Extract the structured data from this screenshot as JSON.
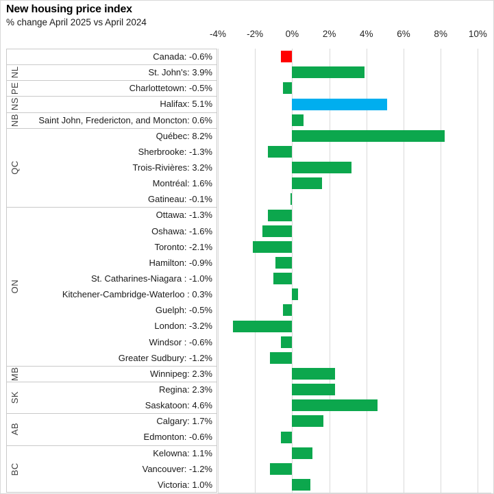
{
  "header": {
    "title": "New housing price index",
    "subtitle": "% change April 2025 vs April 2024"
  },
  "chart_data": {
    "type": "bar",
    "orientation": "horizontal",
    "title": "New housing price index",
    "subtitle": "% change April 2025 vs April 2024",
    "xlabel": "% change",
    "ylabel": "",
    "grid": "vertical",
    "legend": "none",
    "axis": {
      "min": -4,
      "max": 10.8,
      "ticks": [
        {
          "label": "-4%",
          "value": -4
        },
        {
          "label": "-2%",
          "value": -2
        },
        {
          "label": "0%",
          "value": 0
        },
        {
          "label": "2%",
          "value": 2
        },
        {
          "label": "4%",
          "value": 4
        },
        {
          "label": "6%",
          "value": 6
        },
        {
          "label": "8%",
          "value": 8
        },
        {
          "label": "10%",
          "value": 10
        }
      ]
    },
    "colors": {
      "bar_default": "#0CA74D",
      "bar_canada": "#FF0000",
      "bar_halifax": "#00AEEF",
      "gridline": "#d9d9d9",
      "box_border": "#c9c9c9"
    },
    "groups": [
      {
        "label": "",
        "rows": [
          {
            "name": "Canada",
            "text": "Canada: -0.6%",
            "value": -0.6,
            "color": "#FF0000"
          }
        ]
      },
      {
        "label": "NL",
        "rows": [
          {
            "name": "St. John's",
            "text": "St. John's: 3.9%",
            "value": 3.9
          }
        ]
      },
      {
        "label": "PE",
        "rows": [
          {
            "name": "Charlottetown",
            "text": "Charlottetown: -0.5%",
            "value": -0.5
          }
        ]
      },
      {
        "label": "NS",
        "rows": [
          {
            "name": "Halifax",
            "text": "Halifax: 5.1%",
            "value": 5.1,
            "color": "#00AEEF"
          }
        ]
      },
      {
        "label": "NB",
        "rows": [
          {
            "name": "Saint John, Fredericton, and Moncton",
            "text": "Saint John, Fredericton, and Moncton: 0.6%",
            "value": 0.6
          }
        ]
      },
      {
        "label": "QC",
        "rows": [
          {
            "name": "Québec",
            "text": "Québec: 8.2%",
            "value": 8.2
          },
          {
            "name": "Sherbrooke",
            "text": "Sherbrooke: -1.3%",
            "value": -1.3
          },
          {
            "name": "Trois-Rivières",
            "text": "Trois-Rivières: 3.2%",
            "value": 3.2
          },
          {
            "name": "Montréal",
            "text": "Montréal: 1.6%",
            "value": 1.6
          },
          {
            "name": "Gatineau",
            "text": "Gatineau: -0.1%",
            "value": -0.1
          }
        ]
      },
      {
        "label": "ON",
        "rows": [
          {
            "name": "Ottawa",
            "text": "Ottawa: -1.3%",
            "value": -1.3
          },
          {
            "name": "Oshawa",
            "text": "Oshawa: -1.6%",
            "value": -1.6
          },
          {
            "name": "Toronto",
            "text": "Toronto: -2.1%",
            "value": -2.1
          },
          {
            "name": "Hamilton",
            "text": "Hamilton: -0.9%",
            "value": -0.9
          },
          {
            "name": "St. Catharines-Niagara",
            "text": "St. Catharines-Niagara : -1.0%",
            "value": -1.0
          },
          {
            "name": "Kitchener-Cambridge-Waterloo",
            "text": "Kitchener-Cambridge-Waterloo : 0.3%",
            "value": 0.3
          },
          {
            "name": "Guelph",
            "text": "Guelph: -0.5%",
            "value": -0.5
          },
          {
            "name": "London",
            "text": "London: -3.2%",
            "value": -3.2
          },
          {
            "name": "Windsor",
            "text": "Windsor : -0.6%",
            "value": -0.6
          },
          {
            "name": "Greater Sudbury",
            "text": "Greater Sudbury: -1.2%",
            "value": -1.2
          }
        ]
      },
      {
        "label": "MB",
        "rows": [
          {
            "name": "Winnipeg",
            "text": "Winnipeg: 2.3%",
            "value": 2.3
          }
        ]
      },
      {
        "label": "SK",
        "rows": [
          {
            "name": "Regina",
            "text": "Regina: 2.3%",
            "value": 2.3
          },
          {
            "name": "Saskatoon",
            "text": "Saskatoon: 4.6%",
            "value": 4.6
          }
        ]
      },
      {
        "label": "AB",
        "rows": [
          {
            "name": "Calgary",
            "text": "Calgary: 1.7%",
            "value": 1.7
          },
          {
            "name": "Edmonton",
            "text": "Edmonton: -0.6%",
            "value": -0.6
          }
        ]
      },
      {
        "label": "BC",
        "rows": [
          {
            "name": "Kelowna",
            "text": "Kelowna: 1.1%",
            "value": 1.1
          },
          {
            "name": "Vancouver",
            "text": "Vancouver: -1.2%",
            "value": -1.2
          },
          {
            "name": "Victoria",
            "text": "Victoria: 1.0%",
            "value": 1.0
          }
        ]
      }
    ]
  }
}
